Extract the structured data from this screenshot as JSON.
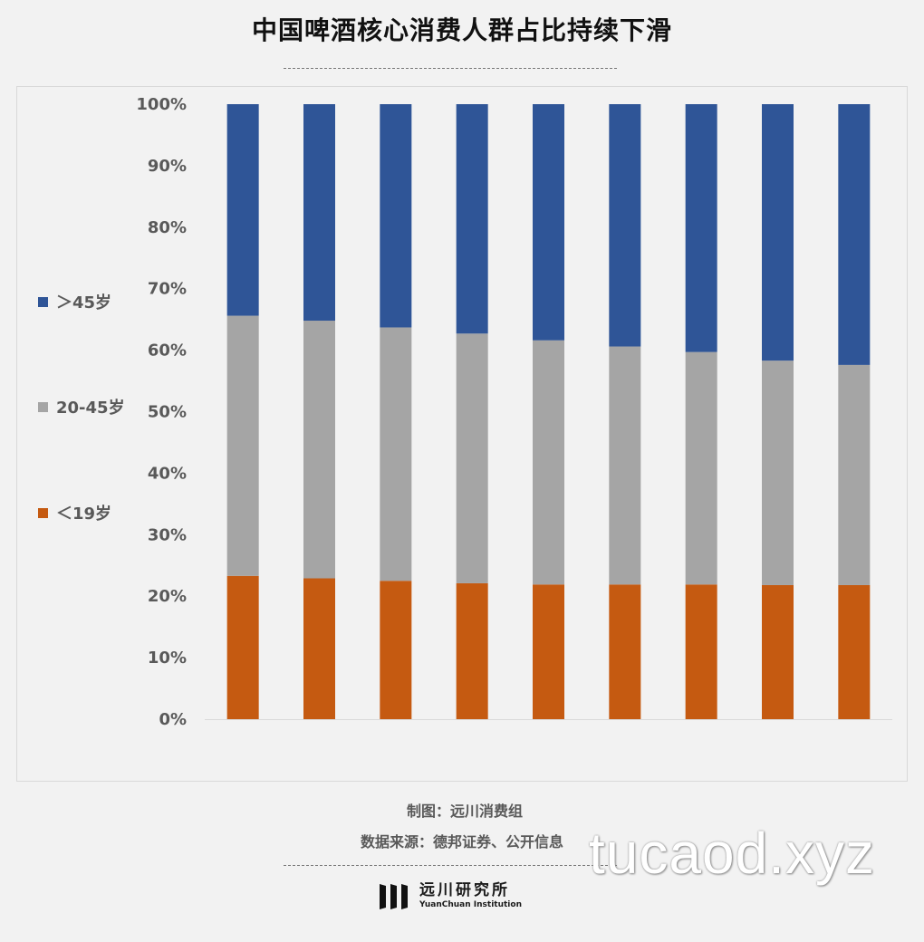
{
  "title": "中国啤酒核心消费人群占比持续下滑",
  "chart_data": {
    "type": "bar",
    "stacked": true,
    "normalized": true,
    "categories": [
      "",
      "",
      "",
      "",
      "",
      "",
      "",
      "",
      ""
    ],
    "series": [
      {
        "name": "＜19岁",
        "color": "#c55a11",
        "values": [
          23.3,
          22.9,
          22.5,
          22.1,
          21.9,
          21.9,
          21.9,
          21.8,
          21.8
        ]
      },
      {
        "name": "20-45岁",
        "color": "#a5a5a5",
        "values": [
          42.3,
          41.9,
          41.2,
          40.6,
          39.7,
          38.7,
          37.8,
          36.5,
          35.8
        ]
      },
      {
        "name": "＞45岁",
        "color": "#2f5597",
        "values": [
          34.4,
          35.2,
          36.3,
          37.3,
          38.4,
          39.4,
          40.3,
          41.7,
          42.4
        ]
      }
    ],
    "ylim": [
      0,
      100
    ],
    "yticks": [
      "0%",
      "10%",
      "20%",
      "30%",
      "40%",
      "50%",
      "60%",
      "70%",
      "80%",
      "90%",
      "100%"
    ],
    "grid": false,
    "legend_position": "left",
    "legend_order": [
      "＞45岁",
      "20-45岁",
      "＜19岁"
    ]
  },
  "credits": {
    "chart_by": "制图：远川消费组",
    "source": "数据来源：德邦证券、公开信息"
  },
  "logo": {
    "name_cn": "远川研究所",
    "name_en": "YuanChuan Institution"
  },
  "watermark": "tucaod.xyz"
}
